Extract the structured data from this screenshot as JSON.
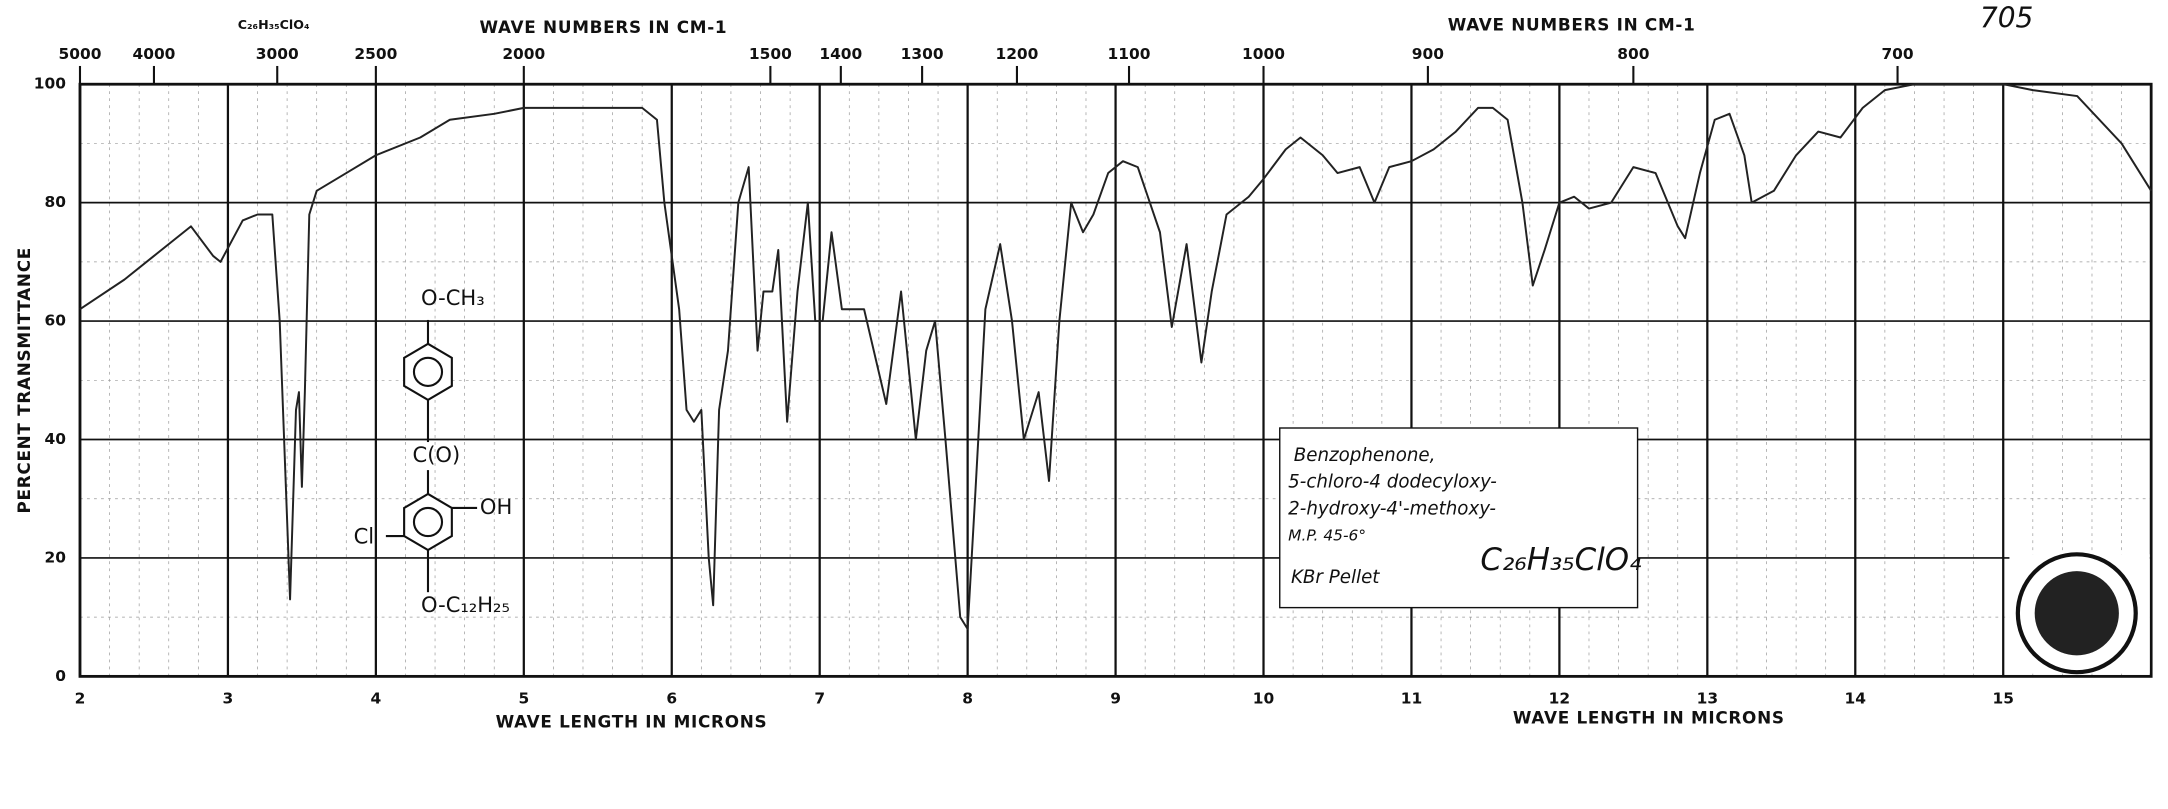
{
  "chart_data": {
    "type": "line",
    "formula_top": "C₂₆H₃₅ClO₄",
    "handwritten_number": "705",
    "top_axis_label": "WAVE NUMBERS IN CM-1",
    "x_label": "WAVE LENGTH IN MICRONS",
    "y_label": "PERCENT TRANSMITTANCE",
    "structure": [
      "O-CH₃",
      "C(O)",
      "OH",
      "Cl",
      "O-C₁₂H₂₅"
    ],
    "notes": [
      "Benzophenone,",
      "5-chloro-4 dodecyloxy-",
      "2-hydroxy-4'-methoxy-",
      "M.P. 45-6°",
      "KBr Pellet"
    ],
    "note_formula": "C₂₆H₃₅ClO₄",
    "xlim": [
      2,
      16
    ],
    "ylim": [
      0,
      100
    ],
    "xticks": [
      2,
      3,
      4,
      5,
      6,
      7,
      8,
      9,
      10,
      11,
      12,
      13,
      14,
      15
    ],
    "yticks": [
      0,
      20,
      40,
      60,
      80,
      100
    ],
    "x2ticks": [
      5000,
      4000,
      3000,
      2500,
      2000,
      1500,
      1400,
      1300,
      1200,
      1100,
      1000,
      900,
      800,
      700
    ],
    "grid": true,
    "x": [
      2.0,
      2.3,
      2.5,
      2.75,
      2.9,
      2.95,
      3.1,
      3.2,
      3.3,
      3.35,
      3.42,
      3.46,
      3.48,
      3.5,
      3.52,
      3.55,
      3.6,
      3.8,
      4.0,
      4.3,
      4.5,
      4.8,
      5.0,
      5.5,
      5.8,
      5.9,
      5.95,
      6.05,
      6.1,
      6.15,
      6.2,
      6.25,
      6.28,
      6.32,
      6.38,
      6.45,
      6.52,
      6.58,
      6.62,
      6.68,
      6.72,
      6.78,
      6.85,
      6.92,
      6.97,
      7.02,
      7.08,
      7.15,
      7.3,
      7.45,
      7.55,
      7.65,
      7.72,
      7.78,
      7.85,
      7.95,
      8.0,
      8.05,
      8.12,
      8.22,
      8.3,
      8.38,
      8.48,
      8.55,
      8.62,
      8.7,
      8.78,
      8.85,
      8.95,
      9.05,
      9.15,
      9.3,
      9.38,
      9.48,
      9.58,
      9.65,
      9.75,
      9.9,
      10.0,
      10.15,
      10.25,
      10.4,
      10.5,
      10.65,
      10.75,
      10.85,
      11.0,
      11.15,
      11.3,
      11.45,
      11.55,
      11.65,
      11.75,
      11.82,
      11.9,
      12.0,
      12.1,
      12.2,
      12.35,
      12.5,
      12.65,
      12.8,
      12.85,
      12.95,
      13.05,
      13.15,
      13.25,
      13.3,
      13.45,
      13.6,
      13.75,
      13.9,
      14.05,
      14.2,
      14.4,
      15.0,
      15.2,
      15.5,
      15.8,
      16.0
    ],
    "series": [
      {
        "name": "transmittance",
        "color": "#222",
        "values": [
          62,
          67,
          71,
          76,
          71,
          70,
          77,
          78,
          78,
          60,
          13,
          45,
          48,
          32,
          48,
          78,
          82,
          85,
          88,
          91,
          94,
          95,
          96,
          96,
          96,
          94,
          80,
          62,
          45,
          43,
          45,
          20,
          12,
          45,
          55,
          80,
          86,
          55,
          65,
          65,
          72,
          43,
          65,
          80,
          60,
          60,
          75,
          62,
          62,
          46,
          65,
          40,
          55,
          60,
          40,
          10,
          8,
          30,
          62,
          73,
          60,
          40,
          48,
          33,
          60,
          80,
          75,
          78,
          85,
          87,
          86,
          75,
          59,
          73,
          53,
          65,
          78,
          81,
          84,
          89,
          91,
          88,
          85,
          86,
          80,
          86,
          87,
          89,
          92,
          96,
          96,
          94,
          80,
          66,
          72,
          80,
          81,
          79,
          80,
          86,
          85,
          76,
          74,
          85,
          94,
          95,
          88,
          80,
          82,
          88,
          92,
          91,
          96,
          99,
          100,
          100,
          99,
          98,
          90,
          82
        ]
      }
    ]
  }
}
